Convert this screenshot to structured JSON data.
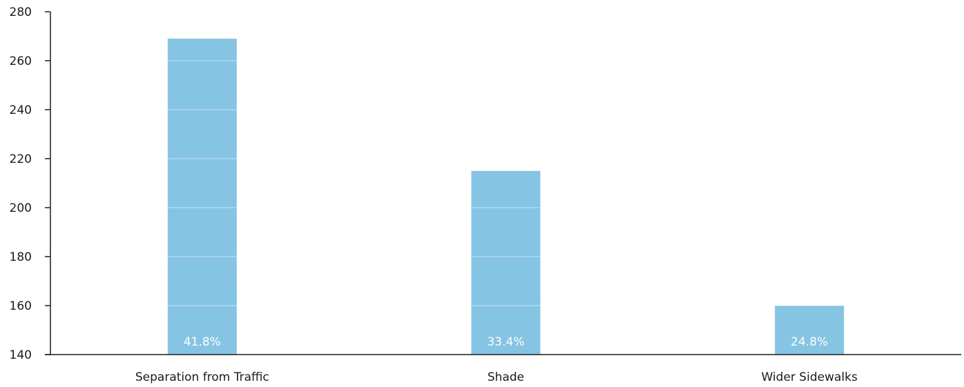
{
  "chart_data": {
    "type": "bar",
    "categories": [
      "Separation from Traffic",
      "Shade",
      "Wider Sidewalks"
    ],
    "values": [
      269,
      215,
      160
    ],
    "data_labels": [
      "41.8%",
      "33.4%",
      "24.8%"
    ],
    "title": "",
    "xlabel": "",
    "ylabel": "",
    "ylim": [
      140,
      280
    ],
    "yticks": [
      140,
      160,
      180,
      200,
      220,
      240,
      260,
      280
    ],
    "grid": true,
    "legend": "none",
    "colors": {
      "bar": "#85c4e3",
      "axis": "#1a1a1a",
      "gridline": "#ffffff"
    }
  }
}
